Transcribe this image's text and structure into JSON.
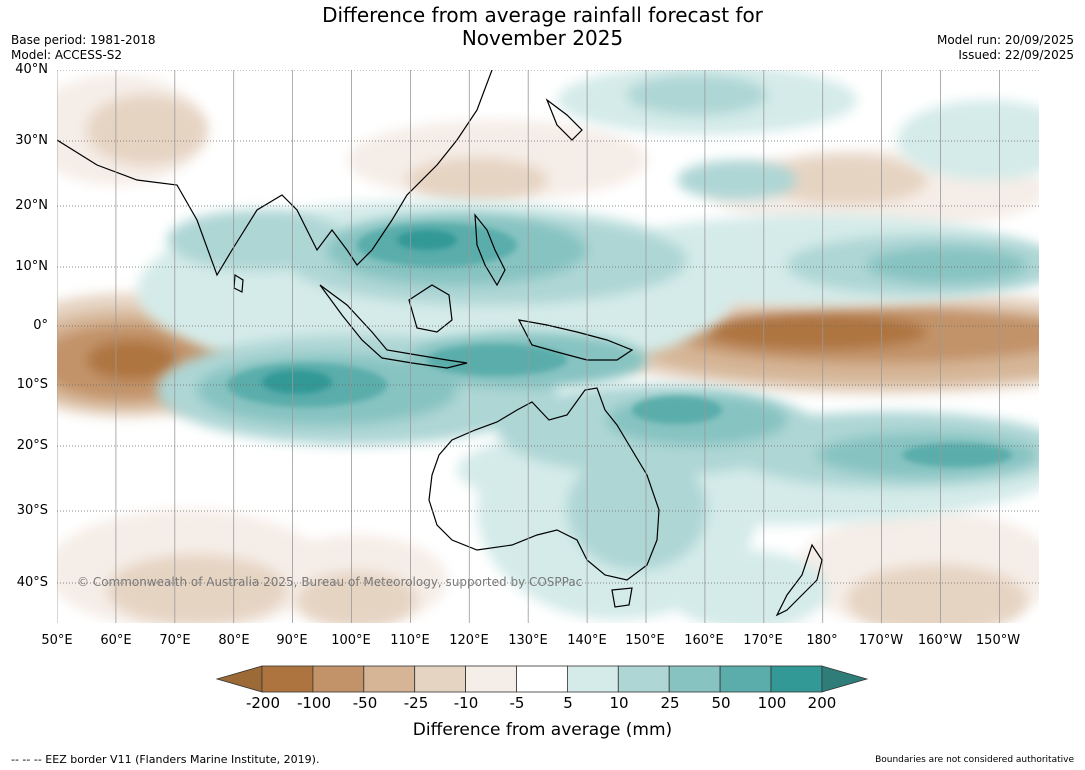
{
  "title": {
    "line1": "Difference from average rainfall forecast for",
    "line2": "November 2025"
  },
  "meta": {
    "base_period": "Base period: 1981-2018",
    "model": "Model: ACCESS-S2",
    "model_run": "Model run: 20/09/2025",
    "issued": "Issued: 22/09/2025"
  },
  "axes": {
    "latitudes": [
      "40°N",
      "30°N",
      "20°N",
      "10°N",
      "0°",
      "10°S",
      "20°S",
      "30°S",
      "40°S"
    ],
    "longitudes": [
      "50°E",
      "60°E",
      "70°E",
      "80°E",
      "90°E",
      "100°E",
      "110°E",
      "120°E",
      "130°E",
      "140°E",
      "150°E",
      "160°E",
      "170°E",
      "180°",
      "170°W",
      "160°W",
      "150°W"
    ]
  },
  "copyright": "© Commonwealth of Australia 2025, Bureau of Meteorology, supported by COSPPac",
  "colorbar": {
    "labels": [
      "-200",
      "-100",
      "-50",
      "-25",
      "-10",
      "-5",
      "5",
      "10",
      "25",
      "50",
      "100",
      "200"
    ],
    "colors": [
      "#9c6a36",
      "#ae7440",
      "#c29369",
      "#d5b596",
      "#e6d4c3",
      "#f5ede7",
      "#ffffff",
      "#d4ebe9",
      "#aed6d5",
      "#86c3c1",
      "#5aadab",
      "#329996",
      "#2e7d78"
    ],
    "title": "Difference from average (mm)"
  },
  "footer": {
    "eez": "--  --  -- EEZ border V11 (Flanders Marine Institute, 2019).",
    "disclaimer": "Boundaries are not considered authoritative"
  }
}
